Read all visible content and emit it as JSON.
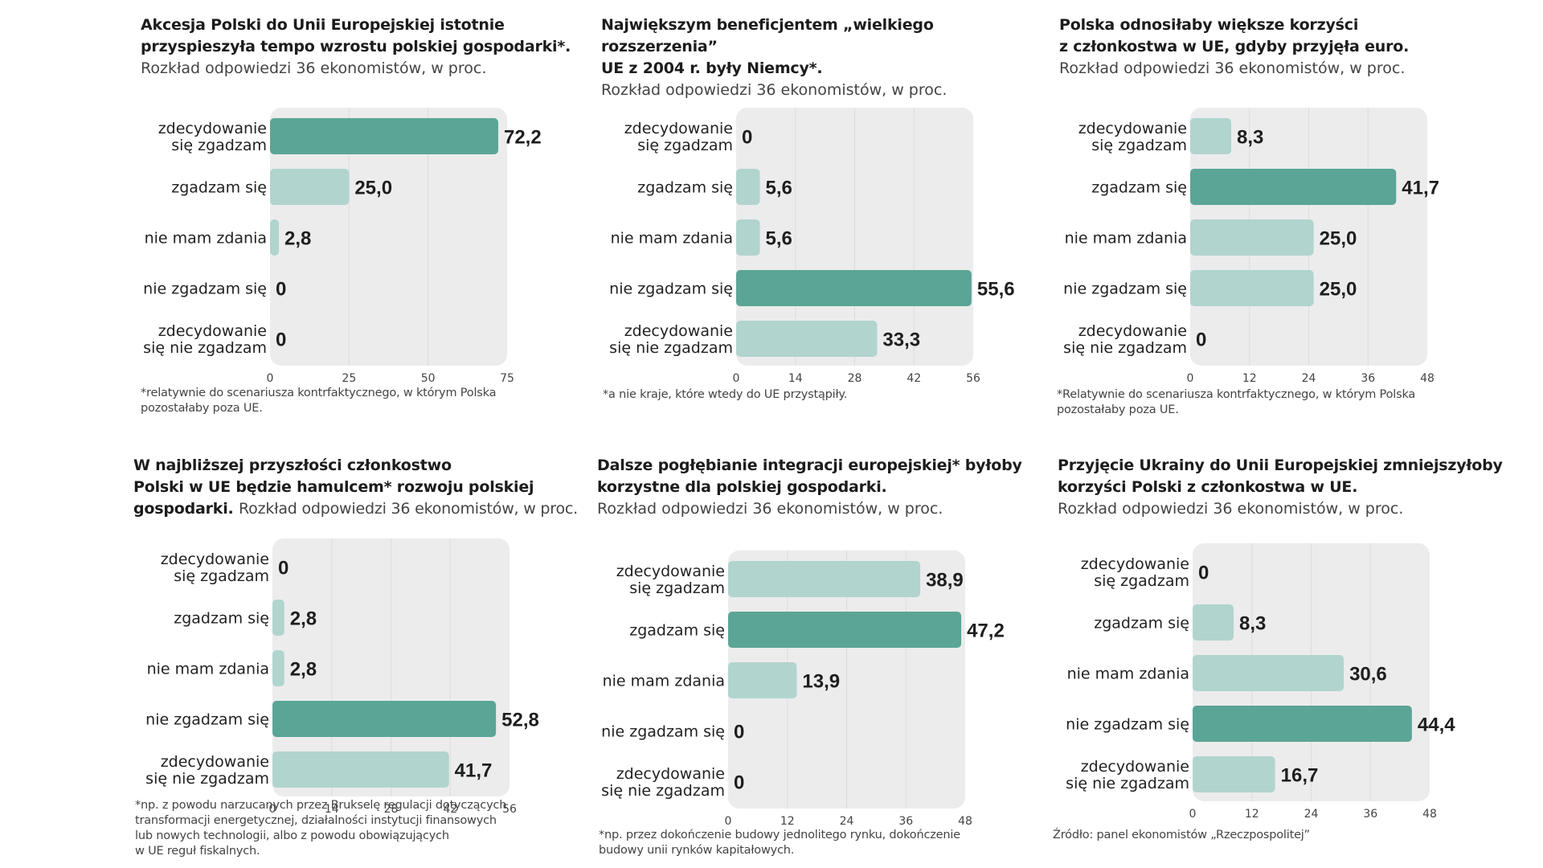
{
  "colors": {
    "highlight": "#5ba596",
    "normal": "#b1d4ce",
    "plot_bg": "#ececec",
    "grid": "#dcdcdc"
  },
  "chart_data": [
    {
      "type": "bar",
      "title": "Akcesja Polski do Unii Europejskiej istotnie przyspieszyła tempo wzrostu polskiej gospodarki*.",
      "title_lines": [
        "Akcesja Polski do Unii Europejskiej istotnie",
        "przyspieszyła tempo wzrostu polskiej gospodarki*."
      ],
      "subtitle": "Rozkład odpowiedzi 36 ekonomistów, w proc.",
      "categories": [
        [
          "zdecydowanie",
          "się zgadzam"
        ],
        [
          "zgadzam się"
        ],
        [
          "nie mam zdania"
        ],
        [
          "nie zgadzam się"
        ],
        [
          "zdecydowanie",
          "się nie zgadzam"
        ]
      ],
      "values": [
        72.2,
        25.0,
        2.8,
        0,
        0
      ],
      "value_labels": [
        "72,2",
        "25,0",
        "2,8",
        "0",
        "0"
      ],
      "highlight_index": 0,
      "xlim": [
        0,
        75
      ],
      "xticks": [
        0,
        25,
        50,
        75
      ],
      "grid": true,
      "footnote": [
        "*relatywnie do scenariusza kontrfaktycznego, w którym Polska",
        "pozostałaby poza UE."
      ]
    },
    {
      "type": "bar",
      "title": "Największym beneficjentem „wielkiego rozszerzenia” UE z 2004 r. były Niemcy*.",
      "title_lines": [
        "Największym beneficjentem „wielkiego rozszerzenia”",
        "UE z 2004 r. były Niemcy*."
      ],
      "subtitle": "Rozkład odpowiedzi 36 ekonomistów, w proc.",
      "categories": [
        [
          "zdecydowanie",
          "się zgadzam"
        ],
        [
          "zgadzam się"
        ],
        [
          "nie mam zdania"
        ],
        [
          "nie zgadzam się"
        ],
        [
          "zdecydowanie",
          "się nie zgadzam"
        ]
      ],
      "values": [
        0,
        5.6,
        5.6,
        55.6,
        33.3
      ],
      "value_labels": [
        "0",
        "5,6",
        "5,6",
        "55,6",
        "33,3"
      ],
      "highlight_index": 3,
      "xlim": [
        0,
        56
      ],
      "xticks": [
        0,
        14,
        28,
        42,
        56
      ],
      "grid": true,
      "footnote": [
        "*a nie kraje, które wtedy do UE przystąpiły."
      ]
    },
    {
      "type": "bar",
      "title": "Polska odnosiłaby większe korzyści z członkostwa w UE, gdyby przyjęła euro.",
      "title_lines": [
        "Polska odnosiłaby większe korzyści",
        "z członkostwa w UE, gdyby przyjęła euro."
      ],
      "subtitle": "Rozkład odpowiedzi 36 ekonomistów, w proc.",
      "categories": [
        [
          "zdecydowanie",
          "się zgadzam"
        ],
        [
          "zgadzam się"
        ],
        [
          "nie mam zdania"
        ],
        [
          "nie zgadzam się"
        ],
        [
          "zdecydowanie",
          "się nie zgadzam"
        ]
      ],
      "values": [
        8.3,
        41.7,
        25.0,
        25.0,
        0
      ],
      "value_labels": [
        "8,3",
        "41,7",
        "25,0",
        "25,0",
        "0"
      ],
      "highlight_index": 1,
      "xlim": [
        0,
        48
      ],
      "xticks": [
        0,
        12,
        24,
        36,
        48
      ],
      "grid": true,
      "footnote": [
        "*Relatywnie do scenariusza kontrfaktycznego, w którym Polska",
        "pozostałaby poza UE."
      ]
    },
    {
      "type": "bar",
      "title": "W najbliższej przyszłości członkostwo Polski w UE będzie hamulcem* rozwoju polskiej gospodarki.",
      "title_lines": [
        "W najbliższej przyszłości członkostwo",
        "Polski w UE będzie hamulcem* rozwoju polskiej",
        "gospodarki."
      ],
      "subtitle": "Rozkład odpowiedzi 36 ekonomistów, w proc.",
      "subtitle_inline": true,
      "categories": [
        [
          "zdecydowanie",
          "się zgadzam"
        ],
        [
          "zgadzam się"
        ],
        [
          "nie mam zdania"
        ],
        [
          "nie zgadzam się"
        ],
        [
          "zdecydowanie",
          "się nie zgadzam"
        ]
      ],
      "values": [
        0,
        2.8,
        2.8,
        52.8,
        41.7
      ],
      "value_labels": [
        "0",
        "2,8",
        "2,8",
        "52,8",
        "41,7"
      ],
      "highlight_index": 3,
      "xlim": [
        0,
        56
      ],
      "xticks": [
        0,
        14,
        28,
        42,
        56
      ],
      "grid": true,
      "footnote": [
        "*np. z powodu narzucanych przez Brukselę regulacji dotyczących",
        "transformacji energetycznej, działalności instytucji finansowych",
        "lub nowych technologii, albo z powodu obowiązujących",
        "w UE reguł fiskalnych."
      ]
    },
    {
      "type": "bar",
      "title": "Dalsze pogłębianie integracji europejskiej* byłoby korzystne dla polskiej gospodarki.",
      "title_lines": [
        "Dalsze pogłębianie integracji europejskiej* byłoby",
        "korzystne dla polskiej gospodarki."
      ],
      "subtitle": "Rozkład odpowiedzi 36 ekonomistów, w proc.",
      "categories": [
        [
          "zdecydowanie",
          "się zgadzam"
        ],
        [
          "zgadzam się"
        ],
        [
          "nie mam zdania"
        ],
        [
          "nie zgadzam się"
        ],
        [
          "zdecydowanie",
          "się nie zgadzam"
        ]
      ],
      "values": [
        38.9,
        47.2,
        13.9,
        0,
        0
      ],
      "value_labels": [
        "38,9",
        "47,2",
        "13,9",
        "0",
        "0"
      ],
      "highlight_index": 1,
      "xlim": [
        0,
        48
      ],
      "xticks": [
        0,
        12,
        24,
        36,
        48
      ],
      "grid": true,
      "footnote": [
        "*np. przez dokończenie budowy jednolitego rynku, dokończenie",
        "budowy unii rynków kapitałowych."
      ]
    },
    {
      "type": "bar",
      "title": "Przyjęcie Ukrainy do Unii Europejskiej zmniejszyłoby korzyści Polski z członkostwa w UE.",
      "title_lines": [
        "Przyjęcie Ukrainy do Unii Europejskiej zmniejszyłoby",
        "korzyści Polski z członkostwa w UE."
      ],
      "subtitle": "Rozkład odpowiedzi 36 ekonomistów, w proc.",
      "categories": [
        [
          "zdecydowanie",
          "się zgadzam"
        ],
        [
          "zgadzam się"
        ],
        [
          "nie mam zdania"
        ],
        [
          "nie zgadzam się"
        ],
        [
          "zdecydowanie",
          "się nie zgadzam"
        ]
      ],
      "values": [
        0,
        8.3,
        30.6,
        44.4,
        16.7
      ],
      "value_labels": [
        "0",
        "8,3",
        "30,6",
        "44,4",
        "16,7"
      ],
      "highlight_index": 3,
      "xlim": [
        0,
        48
      ],
      "xticks": [
        0,
        12,
        24,
        36,
        48
      ],
      "grid": true,
      "footnote": [
        "Źródło: panel ekonomistów „Rzeczpospolitej”"
      ]
    }
  ]
}
